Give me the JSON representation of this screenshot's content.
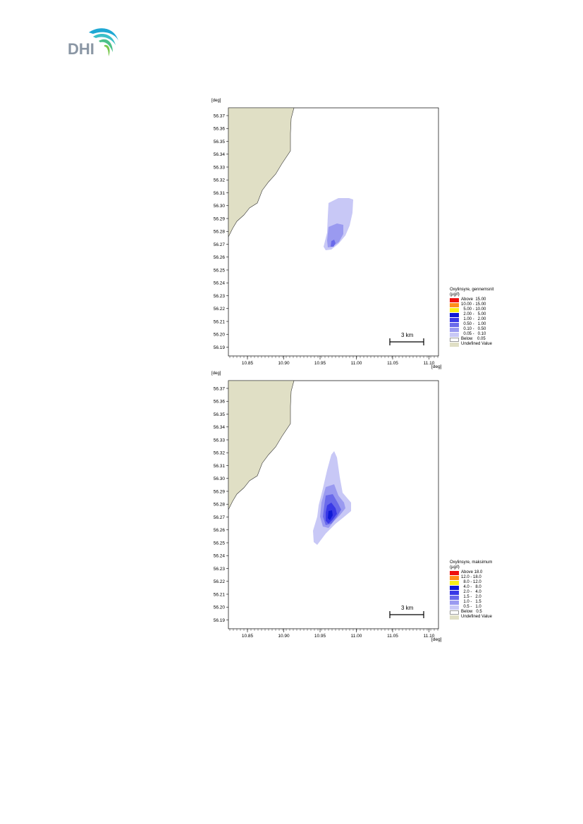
{
  "header": {
    "logo_text": "DHI"
  },
  "colors": {
    "land": "#e0dfc5",
    "c_above": "#ee1010",
    "c_2": "#ff8c1a",
    "c_3": "#f8f01a",
    "c_4": "#0f1ad6",
    "c_5": "#3a3ae6",
    "c_6": "#6a6aea",
    "c_7": "#9a9af0",
    "c_8": "#c8c8f6",
    "c_below": "#ffffff"
  },
  "maps": [
    {
      "unit_top": "[deg]",
      "unit_right": "[deg]",
      "y_ticks": [
        "56.37",
        "56.36",
        "56.35",
        "56.34",
        "56.33",
        "56.32",
        "56.31",
        "56.30",
        "56.29",
        "56.28",
        "56.27",
        "56.26",
        "56.25",
        "56.24",
        "56.23",
        "56.22",
        "56.21",
        "56.20",
        "56.19"
      ],
      "x_ticks": [
        "10.85",
        "10.90",
        "10.95",
        "11.00",
        "11.05",
        "11.10"
      ],
      "scale_bar_label": "3 km",
      "legend": {
        "title": "Oxylinsyre, gennemsnit",
        "unit": "(µg/l)",
        "items": [
          {
            "label": "Above  15.00",
            "color": "#ee1010"
          },
          {
            "label": "10.00 - 15.00",
            "color": "#ff8c1a"
          },
          {
            "label": "  5.00 - 10.00",
            "color": "#f8f01a"
          },
          {
            "label": "  2.00 -   5.00",
            "color": "#0f1ad6"
          },
          {
            "label": "  1.00 -   2.00",
            "color": "#3a3ae6"
          },
          {
            "label": "  0.50 -   1.00",
            "color": "#6a6aea"
          },
          {
            "label": "  0.10 -   0.50",
            "color": "#9a9af0"
          },
          {
            "label": "  0.05 -   0.10",
            "color": "#c8c8f6"
          },
          {
            "label": "Below    0.05",
            "color": "#ffffff"
          },
          {
            "label": "Undefined Value",
            "color": "#e0dfc5"
          }
        ]
      }
    },
    {
      "unit_top": "[deg]",
      "unit_right": "[deg]",
      "y_ticks": [
        "56.37",
        "56.36",
        "56.35",
        "56.34",
        "56.33",
        "56.32",
        "56.31",
        "56.30",
        "56.29",
        "56.28",
        "56.27",
        "56.26",
        "56.25",
        "56.24",
        "56.23",
        "56.22",
        "56.21",
        "56.20",
        "56.19"
      ],
      "x_ticks": [
        "10.85",
        "10.90",
        "10.95",
        "11.00",
        "11.05",
        "11.10"
      ],
      "scale_bar_label": "3 km",
      "legend": {
        "title": "Oxylinsyre, maksimum",
        "unit": "(µg/l)",
        "items": [
          {
            "label": "Above 18.0",
            "color": "#ee1010"
          },
          {
            "label": "12.0 - 18.0",
            "color": "#ff8c1a"
          },
          {
            "label": "  8.0 - 12.0",
            "color": "#f8f01a"
          },
          {
            "label": "  4.0 -   8.0",
            "color": "#0f1ad6"
          },
          {
            "label": "  2.0 -   4.0",
            "color": "#3a3ae6"
          },
          {
            "label": "  1.5 -   2.0",
            "color": "#6a6aea"
          },
          {
            "label": "  1.0 -   1.5",
            "color": "#9a9af0"
          },
          {
            "label": "  0.5 -   1.0",
            "color": "#c8c8f6"
          },
          {
            "label": "Below   0.5",
            "color": "#ffffff"
          },
          {
            "label": "Undefined Value",
            "color": "#e0dfc5"
          }
        ]
      }
    }
  ]
}
